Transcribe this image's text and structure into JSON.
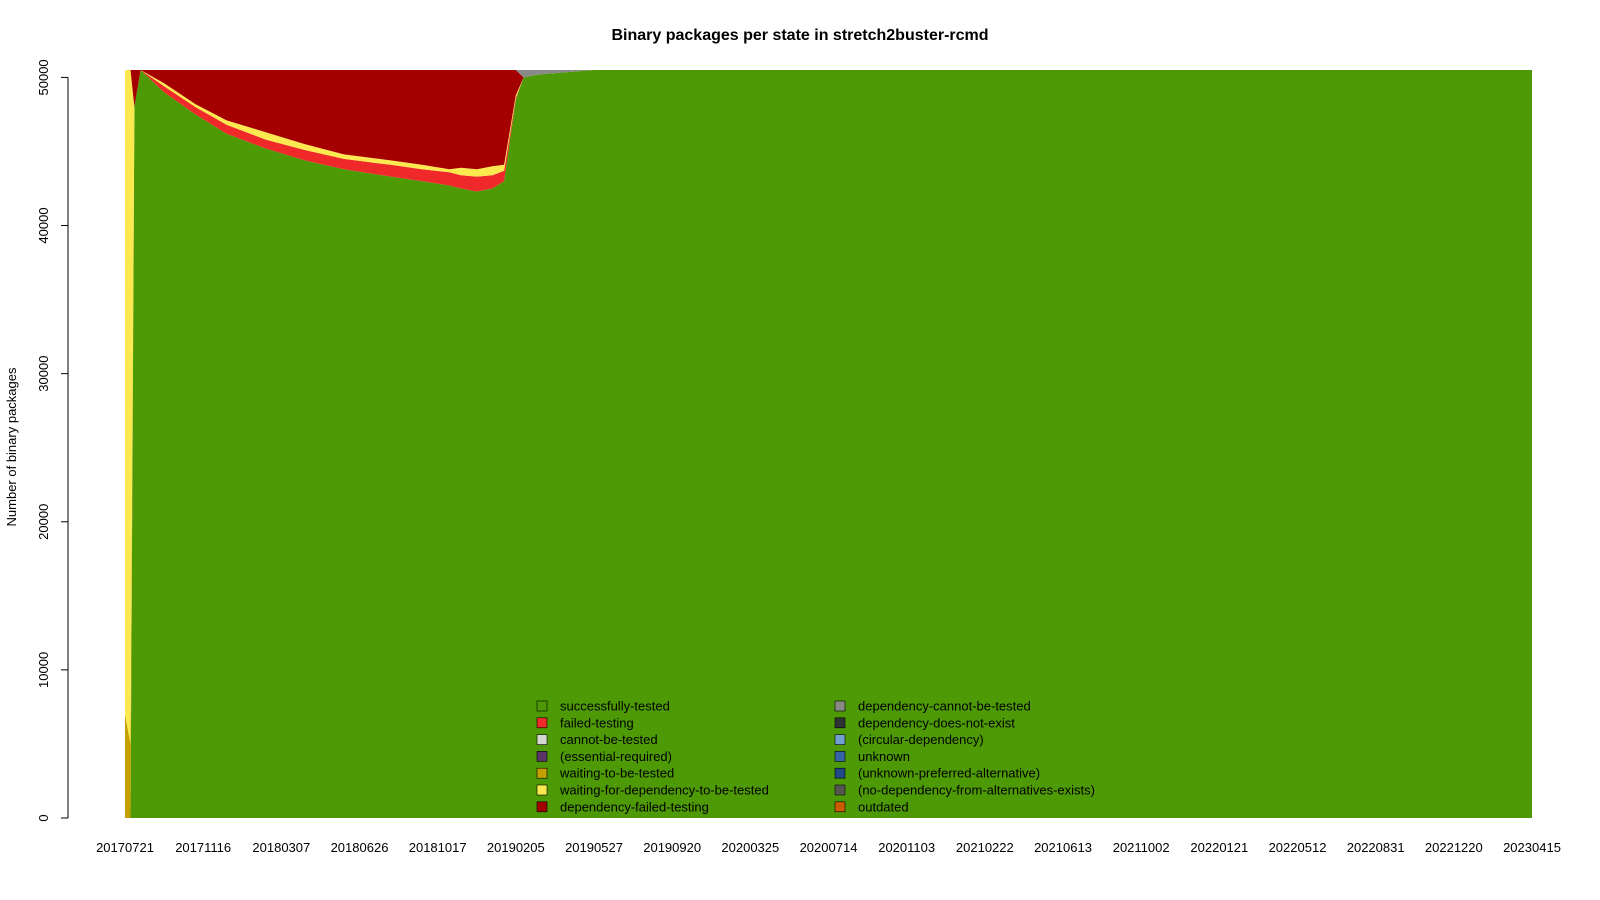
{
  "chart_data": {
    "type": "area",
    "stacked": true,
    "title": "Binary packages per state in stretch2buster-rcmd",
    "xlabel": "",
    "ylabel": "Number of binary packages",
    "ylim": [
      0,
      50500
    ],
    "yticks": [
      0,
      10000,
      20000,
      30000,
      40000,
      50000
    ],
    "xticks": [
      "20170721",
      "20171116",
      "20180307",
      "20180626",
      "20181017",
      "20190205",
      "20190527",
      "20190920",
      "20200325",
      "20200714",
      "20201103",
      "20210222",
      "20210613",
      "20211002",
      "20220121",
      "20220512",
      "20220831",
      "20221220",
      "20230415"
    ],
    "grid": false,
    "legend_position": "bottom-center",
    "legend": [
      {
        "label": "successfully-tested",
        "color": "#4e9a06"
      },
      {
        "label": "failed-testing",
        "color": "#ef2929"
      },
      {
        "label": "cannot-be-tested",
        "color": "#d3d7cf"
      },
      {
        "label": "(essential-required)",
        "color": "#5c3566"
      },
      {
        "label": "waiting-to-be-tested",
        "color": "#c4a000"
      },
      {
        "label": "waiting-for-dependency-to-be-tested",
        "color": "#fce94f"
      },
      {
        "label": "dependency-failed-testing",
        "color": "#a40000"
      },
      {
        "label": "dependency-cannot-be-tested",
        "color": "#888a85"
      },
      {
        "label": "dependency-does-not-exist",
        "color": "#2e3436"
      },
      {
        "label": "(circular-dependency)",
        "color": "#729fcf"
      },
      {
        "label": "unknown",
        "color": "#3465a4"
      },
      {
        "label": "(unknown-preferred-alternative)",
        "color": "#204a87"
      },
      {
        "label": "(no-dependency-from-alternatives-exists)",
        "color": "#555753"
      },
      {
        "label": "outdated",
        "color": "#ce5c00"
      }
    ],
    "x": [
      0,
      0.07,
      0.12,
      0.2,
      0.5,
      0.9,
      1.3,
      1.8,
      2.3,
      2.8,
      3.4,
      3.8,
      4.15,
      4.3,
      4.5,
      4.7,
      4.85,
      5.0,
      5.1,
      5.3,
      6.0,
      7.0,
      8.0,
      9.0,
      10.0,
      11.0,
      12.0,
      13.0,
      14.0,
      15.0,
      16.0,
      17.0,
      18.0
    ],
    "series": [
      {
        "name": "successfully-tested",
        "values": [
          0,
          0,
          48000,
          50500,
          49000,
          47500,
          46200,
          45200,
          44400,
          43800,
          43300,
          43000,
          42700,
          42500,
          42300,
          42500,
          43000,
          48500,
          50000,
          50200,
          50500,
          50500,
          50500,
          50500,
          50500,
          50500,
          50500,
          50500,
          50500,
          50500,
          50500,
          50500,
          50500
        ]
      },
      {
        "name": "failed-testing",
        "values": [
          0,
          0,
          0,
          0,
          400,
          500,
          600,
          600,
          700,
          700,
          800,
          800,
          900,
          900,
          1000,
          900,
          700,
          100,
          0,
          0,
          0,
          0,
          0,
          0,
          0,
          0,
          0,
          0,
          0,
          0,
          0,
          0,
          0
        ]
      },
      {
        "name": "waiting-to-be-tested",
        "values": [
          7000,
          5000,
          0,
          0,
          0,
          0,
          0,
          0,
          0,
          0,
          0,
          0,
          0,
          0,
          0,
          0,
          0,
          0,
          0,
          0,
          0,
          0,
          0,
          0,
          0,
          0,
          0,
          0,
          0,
          0,
          0,
          0,
          0
        ]
      },
      {
        "name": "waiting-for-dependency-to-be-tested",
        "values": [
          43500,
          45500,
          0,
          0,
          200,
          200,
          300,
          500,
          400,
          300,
          300,
          300,
          200,
          500,
          500,
          600,
          400,
          200,
          0,
          0,
          0,
          0,
          0,
          0,
          0,
          0,
          0,
          0,
          0,
          0,
          0,
          0,
          0
        ]
      },
      {
        "name": "dependency-failed-testing",
        "values": [
          0,
          0,
          2500,
          0,
          900,
          2300,
          3400,
          4200,
          5000,
          5700,
          6100,
          6400,
          6700,
          6600,
          6700,
          6500,
          6400,
          1700,
          0,
          0,
          0,
          0,
          0,
          0,
          0,
          0,
          0,
          0,
          0,
          0,
          0,
          0,
          0
        ]
      },
      {
        "name": "dependency-cannot-be-tested",
        "values": [
          0,
          0,
          0,
          0,
          0,
          0,
          0,
          0,
          0,
          0,
          0,
          0,
          0,
          0,
          0,
          0,
          0,
          0,
          500,
          300,
          0,
          0,
          0,
          0,
          0,
          0,
          0,
          0,
          0,
          0,
          0,
          0,
          0
        ]
      }
    ]
  }
}
